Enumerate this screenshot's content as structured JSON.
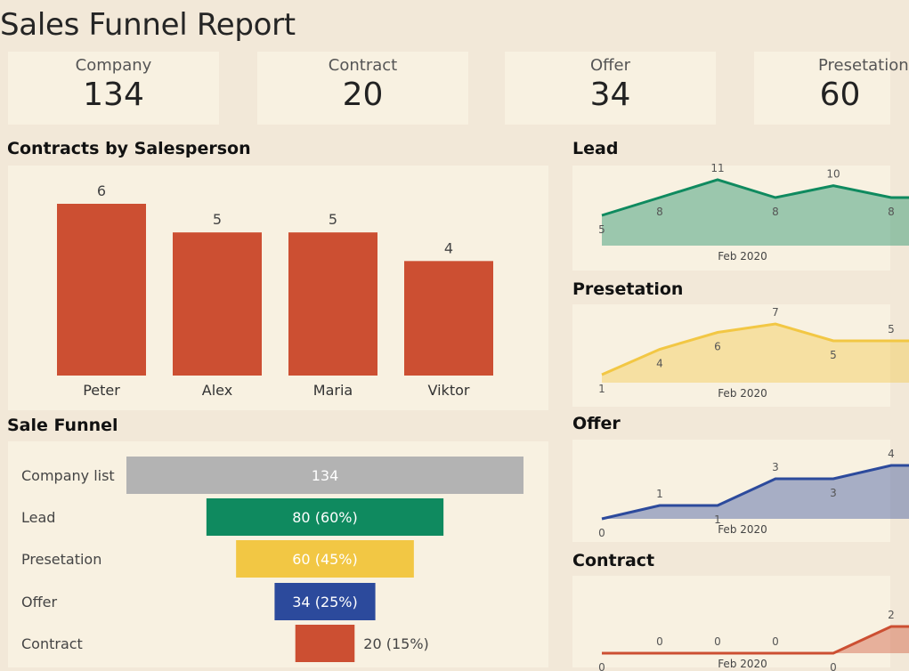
{
  "page": {
    "title": "Sales Funnel Report"
  },
  "kpis": [
    {
      "label": "Company",
      "value": "134"
    },
    {
      "label": "Contract",
      "value": "20"
    },
    {
      "label": "Offer",
      "value": "34"
    },
    {
      "label": "Presetation",
      "value": "60"
    }
  ],
  "colors": {
    "bar": "#cc4f32",
    "gray": "#b3b3b3",
    "green": "#0f8a5f",
    "yellow": "#f2c744",
    "blue": "#2c4a9c",
    "red": "#cc4f32"
  },
  "chart_data": [
    {
      "type": "bar",
      "title": "Contracts by Salesperson",
      "categories": [
        "Peter",
        "Alex",
        "Maria",
        "Viktor"
      ],
      "values": [
        6,
        5,
        5,
        4
      ],
      "ylim": [
        0,
        6
      ]
    },
    {
      "type": "bar",
      "title": "Sale Funnel",
      "categories": [
        "Company list",
        "Lead",
        "Presetation",
        "Offer",
        "Contract"
      ],
      "values": [
        134,
        80,
        60,
        34,
        20
      ],
      "labels": [
        "134",
        "80 (60%)",
        "60 (45%)",
        "34 (25%)",
        "20 (15%)"
      ]
    },
    {
      "type": "area",
      "title": "Lead",
      "values": [
        5,
        8,
        11,
        8,
        10,
        8
      ],
      "xlabel": "Feb 2020"
    },
    {
      "type": "area",
      "title": "Presetation",
      "values": [
        1,
        4,
        6,
        7,
        5,
        5
      ],
      "xlabel": "Feb 2020"
    },
    {
      "type": "area",
      "title": "Offer",
      "values": [
        0,
        1,
        1,
        3,
        3,
        4
      ],
      "xlabel": "Feb 2020"
    },
    {
      "type": "area",
      "title": "Contract",
      "values": [
        0,
        0,
        0,
        0,
        0,
        2
      ],
      "xlabel": "Feb 2020"
    }
  ]
}
